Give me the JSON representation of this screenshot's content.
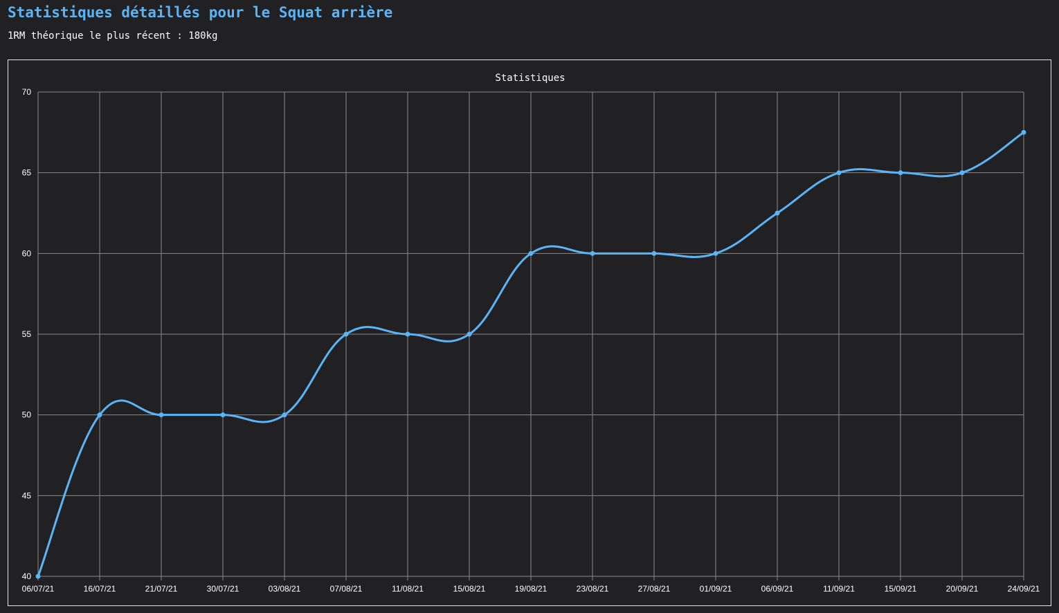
{
  "page": {
    "title": "Statistiques détaillés pour le Squat arrière",
    "subtitle": "1RM théorique le plus récent : 180kg"
  },
  "colors": {
    "background": "#212124",
    "accent": "#5ab4f5",
    "grid": "#8a8a8a",
    "text": "#ffffff"
  },
  "chart_data": {
    "type": "line",
    "title": "Statistiques",
    "xlabel": "",
    "ylabel": "",
    "categories": [
      "06/07/21",
      "16/07/21",
      "21/07/21",
      "30/07/21",
      "03/08/21",
      "07/08/21",
      "11/08/21",
      "15/08/21",
      "19/08/21",
      "23/08/21",
      "27/08/21",
      "01/09/21",
      "06/09/21",
      "11/09/21",
      "15/09/21",
      "20/09/21",
      "24/09/21"
    ],
    "series": [
      {
        "values": [
          40,
          50,
          50,
          50,
          50,
          55,
          55,
          55,
          60,
          60,
          60,
          60,
          62.5,
          65,
          65,
          65,
          67.5
        ]
      }
    ],
    "ylim": [
      40,
      70
    ],
    "yticks": [
      40,
      45,
      50,
      55,
      60,
      65,
      70
    ],
    "grid": true,
    "legend": "none",
    "line_color": "#5ab4f5"
  }
}
